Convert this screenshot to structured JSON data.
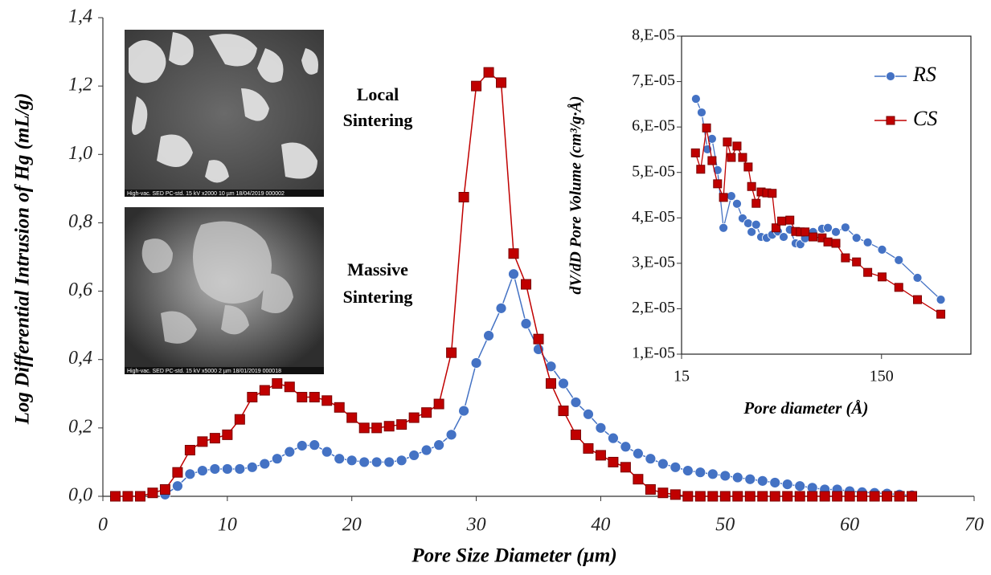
{
  "chart_data": [
    {
      "type": "line",
      "x": [
        1,
        2,
        3,
        4,
        5,
        6,
        7,
        8,
        9,
        10,
        11,
        12,
        13,
        14,
        15,
        16,
        17,
        18,
        19,
        20,
        21,
        22,
        23,
        24,
        25,
        26,
        27,
        28,
        29,
        30,
        31,
        32,
        33,
        34,
        35,
        36,
        37,
        38,
        39,
        40,
        41,
        42,
        43,
        44,
        45,
        46,
        47,
        48,
        49,
        50,
        51,
        52,
        53,
        54,
        55,
        56,
        57,
        58,
        59,
        60,
        61,
        62,
        63,
        64,
        65
      ],
      "series": [
        {
          "color": "#4472c4",
          "marker": "circle",
          "values": [
            null,
            null,
            null,
            null,
            0.005,
            0.03,
            0.065,
            0.075,
            0.08,
            0.08,
            0.08,
            0.085,
            0.095,
            0.11,
            0.13,
            0.148,
            0.15,
            0.13,
            0.11,
            0.105,
            0.1,
            0.1,
            0.1,
            0.105,
            0.12,
            0.135,
            0.15,
            0.18,
            0.25,
            0.39,
            0.47,
            0.55,
            0.65,
            0.505,
            0.43,
            0.38,
            0.33,
            0.275,
            0.24,
            0.2,
            0.17,
            0.145,
            0.125,
            0.11,
            0.095,
            0.085,
            0.075,
            0.07,
            0.065,
            0.06,
            0.055,
            0.05,
            0.045,
            0.04,
            0.035,
            0.03,
            0.025,
            0.02,
            0.02,
            0.015,
            0.012,
            0.01,
            0.008,
            0.005,
            0.003
          ]
        },
        {
          "color": "#c00000",
          "marker": "square",
          "values": [
            0,
            0,
            0,
            0.01,
            0.02,
            0.07,
            0.135,
            0.16,
            0.17,
            0.18,
            0.225,
            0.29,
            0.31,
            0.33,
            0.32,
            0.29,
            0.29,
            0.28,
            0.26,
            0.23,
            0.2,
            0.2,
            0.205,
            0.21,
            0.23,
            0.245,
            0.27,
            0.42,
            0.875,
            1.2,
            1.24,
            1.21,
            0.71,
            0.62,
            0.46,
            0.33,
            0.25,
            0.18,
            0.14,
            0.12,
            0.1,
            0.085,
            0.05,
            0.02,
            0.01,
            0.005,
            0,
            0,
            0,
            0,
            0,
            0,
            0,
            0,
            0,
            0,
            0,
            0,
            0,
            0,
            0,
            0,
            0,
            0,
            0
          ]
        }
      ],
      "xlim": [
        0,
        70
      ],
      "xticks": [
        0,
        10,
        20,
        30,
        40,
        50,
        60,
        70
      ],
      "ylim": [
        0,
        1.4
      ],
      "yticks": [
        {
          "value": 0,
          "label": "0,0"
        },
        {
          "value": 0.2,
          "label": "0,2"
        },
        {
          "value": 0.4,
          "label": "0,4"
        },
        {
          "value": 0.6,
          "label": "0,6"
        },
        {
          "value": 0.8,
          "label": "0,8"
        },
        {
          "value": 1.0,
          "label": "1,0"
        },
        {
          "value": 1.2,
          "label": "1,2"
        },
        {
          "value": 1.4,
          "label": "1,4"
        }
      ],
      "xlabel": "Pore  Size Diameter (µm)",
      "ylabel": "Log Differential Intrusion of Hg (mL/g)",
      "annotations": [
        [
          "Local",
          "Sintering"
        ],
        [
          "Massive",
          "Sintering"
        ]
      ],
      "image_captions": [
        "High-vac.   SED   PC-std.   15 kV   x2000   10 µm   18/04/2019   000002",
        "High-vac.   SED   PC-std.   15 kV   x5000   2 µm   18/01/2019   000018"
      ],
      "grid": false
    },
    {
      "type": "line",
      "log_x": true,
      "series": [
        {
          "name": "RS",
          "color": "#4472c4",
          "marker": "circle",
          "x": [
            17.7,
            18.9,
            20.2,
            21.3,
            22.7,
            24.3,
            26.6,
            28.4,
            30.3,
            32.3,
            33.6,
            35.4,
            37.5,
            40.0,
            42.6,
            45.5,
            48.6,
            52.2,
            55.8,
            58.9,
            62.2,
            68.2,
            75.7,
            80.9,
            88.7,
            99.0,
            112.5,
            128,
            151,
            183,
            227,
            297
          ],
          "values": [
            6.62e-05,
            6.32e-05,
            5.51e-05,
            5.74e-05,
            5.05e-05,
            3.78e-05,
            4.48e-05,
            4.31e-05,
            3.99e-05,
            3.88e-05,
            3.69e-05,
            3.85e-05,
            3.58e-05,
            3.56e-05,
            3.63e-05,
            3.7e-05,
            3.58e-05,
            3.74e-05,
            3.44e-05,
            3.42e-05,
            3.55e-05,
            3.69e-05,
            3.76e-05,
            3.78e-05,
            3.69e-05,
            3.79e-05,
            3.56e-05,
            3.46e-05,
            3.3e-05,
            3.07e-05,
            2.68e-05,
            2.2e-05
          ]
        },
        {
          "name": "CS",
          "color": "#c00000",
          "marker": "square",
          "x": [
            17.6,
            18.7,
            20.0,
            21.3,
            22.7,
            24.3,
            25.4,
            26.6,
            28.4,
            30.3,
            32.3,
            33.6,
            35.4,
            37.5,
            40.0,
            42.6,
            44.5,
            47.5,
            52.2,
            55.8,
            58.9,
            62.2,
            68.2,
            75.7,
            80.9,
            88.7,
            99.0,
            112.5,
            128,
            151,
            183,
            227,
            297
          ],
          "values": [
            5.43e-05,
            5.07e-05,
            5.98e-05,
            5.26e-05,
            4.75e-05,
            4.45e-05,
            5.67e-05,
            5.33e-05,
            5.58e-05,
            5.33e-05,
            5.12e-05,
            4.69e-05,
            4.32e-05,
            4.57e-05,
            4.55e-05,
            4.54e-05,
            3.78e-05,
            3.93e-05,
            3.95e-05,
            3.7e-05,
            3.69e-05,
            3.69e-05,
            3.58e-05,
            3.56e-05,
            3.47e-05,
            3.44e-05,
            3.12e-05,
            3.03e-05,
            2.8e-05,
            2.7e-05,
            2.47e-05,
            2.2e-05,
            1.88e-05
          ]
        }
      ],
      "xlim": [
        15,
        420
      ],
      "xticks": [
        15,
        150
      ],
      "ylim": [
        1e-05,
        8e-05
      ],
      "yticks": [
        {
          "value": 1e-05,
          "label": "1,E-05"
        },
        {
          "value": 2e-05,
          "label": "2,E-05"
        },
        {
          "value": 3e-05,
          "label": "3,E-05"
        },
        {
          "value": 4e-05,
          "label": "4,E-05"
        },
        {
          "value": 5e-05,
          "label": "5,E-05"
        },
        {
          "value": 6e-05,
          "label": "6,E-05"
        },
        {
          "value": 7e-05,
          "label": "7,E-05"
        },
        {
          "value": 8e-05,
          "label": "8,E-05"
        }
      ],
      "xlabel": "Pore diameter (Å)",
      "ylabel": "dV/dD Pore Volume (cm³/g·Å)",
      "legend": "upper right",
      "grid": false
    }
  ]
}
